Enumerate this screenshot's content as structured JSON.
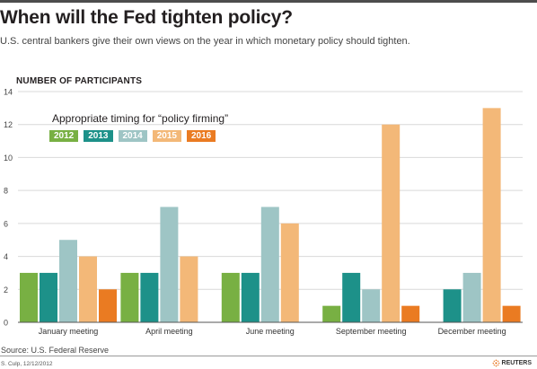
{
  "header": {
    "title": "When will the Fed tighten policy?",
    "subtitle": "U.S. central bankers give their own views on the year in which monetary policy should tighten."
  },
  "footer": {
    "source": "Source: U.S. Federal Reserve",
    "credit": "S. Culp, 12/12/2012",
    "brand": "REUTERS"
  },
  "chart_data": {
    "type": "bar",
    "ylabel": "NUMBER OF PARTICIPANTS",
    "legend_title": "Appropriate timing for “policy firming”",
    "legend_placement": "top-left",
    "grid": true,
    "ylim": [
      0,
      14
    ],
    "yticks": [
      "0",
      "2",
      "4",
      "6",
      "8",
      "10",
      "12",
      "14"
    ],
    "categories": [
      "January meeting",
      "April meeting",
      "June meeting",
      "September meeting",
      "December meeting"
    ],
    "series": [
      {
        "name": "2012",
        "color": "#78b043",
        "values": [
          3,
          3,
          3,
          1,
          0
        ]
      },
      {
        "name": "2013",
        "color": "#1d9189",
        "values": [
          3,
          3,
          3,
          3,
          2
        ]
      },
      {
        "name": "2014",
        "color": "#9ec5c5",
        "values": [
          5,
          7,
          7,
          2,
          3
        ]
      },
      {
        "name": "2015",
        "color": "#f3b878",
        "values": [
          4,
          4,
          6,
          12,
          13
        ]
      },
      {
        "name": "2016",
        "color": "#ea7b22",
        "values": [
          2,
          0,
          0,
          1,
          1
        ]
      }
    ]
  }
}
